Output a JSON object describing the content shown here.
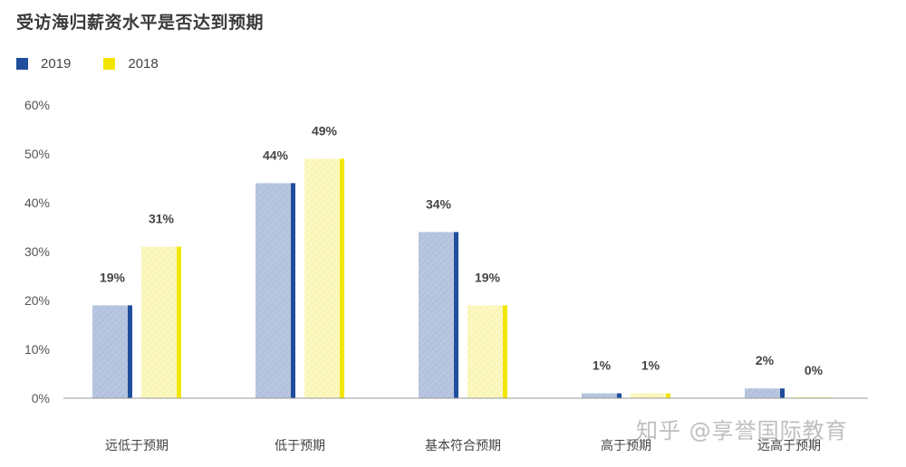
{
  "title": "受访海归薪资水平是否达到预期",
  "watermark": "知乎 @享誉国际教育",
  "legend": [
    {
      "label": "2019",
      "color": "#1f4e9c"
    },
    {
      "label": "2018",
      "color": "#f2e600"
    }
  ],
  "colors": {
    "s2019_fill": "#b8c6e0",
    "s2019_edge": "#1f4e9c",
    "s2018_fill": "#fbf6b4",
    "s2018_edge": "#f2e600",
    "axis": "#999999",
    "tick_text": "#555555",
    "label_text": "#444444"
  },
  "chart_data": {
    "type": "bar",
    "title": "受访海归薪资水平是否达到预期",
    "categories": [
      "远低于预期",
      "低于预期",
      "基本符合预期",
      "高于预期",
      "远高于预期"
    ],
    "series": [
      {
        "name": "2019",
        "values": [
          19,
          44,
          34,
          1,
          2
        ],
        "labels": [
          "19%",
          "44%",
          "34%",
          "1%",
          "2%"
        ]
      },
      {
        "name": "2018",
        "values": [
          31,
          49,
          19,
          1,
          0
        ],
        "labels": [
          "31%",
          "49%",
          "19%",
          "1%",
          "0%"
        ]
      }
    ],
    "yticks": [
      "0%",
      "10%",
      "20%",
      "30%",
      "40%",
      "50%",
      "60%"
    ],
    "ylim": [
      0,
      60
    ],
    "xlabel": "",
    "ylabel": "",
    "grid": false,
    "legend_position": "top-left"
  }
}
